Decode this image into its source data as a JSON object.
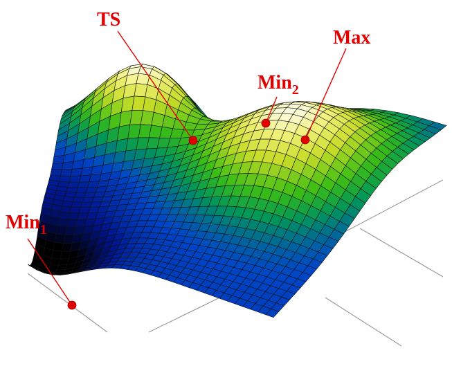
{
  "points": [
    {
      "label": "TS"
    },
    {
      "label": "Max"
    },
    {
      "label": "Min",
      "subscript": "2"
    },
    {
      "label": "Min",
      "subscript": "1"
    }
  ]
}
